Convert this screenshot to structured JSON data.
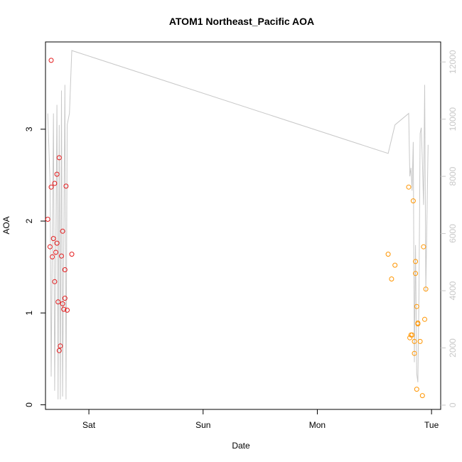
{
  "chart_data": {
    "type": "scatter",
    "title": "ATOM1 Northeast_Pacific AOA",
    "xlabel": "Date",
    "ylabel": "AOA",
    "ylabel_right": "",
    "grid": false,
    "legend": "none",
    "x_axis": {
      "type": "time",
      "range_days": [
        -0.38,
        3.08
      ],
      "ticks": [
        {
          "label": "Sat",
          "value": 0
        },
        {
          "label": "Sun",
          "value": 1
        },
        {
          "label": "Mon",
          "value": 2
        },
        {
          "label": "Tue",
          "value": 3
        }
      ]
    },
    "y_left": {
      "range": [
        -0.05,
        3.95
      ],
      "ticks": [
        {
          "label": "0",
          "value": 0
        },
        {
          "label": "1",
          "value": 1
        },
        {
          "label": "2",
          "value": 2
        },
        {
          "label": "3",
          "value": 3
        }
      ]
    },
    "y_right": {
      "range": [
        -150,
        12700
      ],
      "color": "#c8c8c8",
      "ticks": [
        {
          "label": "0",
          "value": 0
        },
        {
          "label": "2000",
          "value": 2000
        },
        {
          "label": "4000",
          "value": 4000
        },
        {
          "label": "6000",
          "value": 6000
        },
        {
          "label": "8000",
          "value": 8000
        },
        {
          "label": "10000",
          "value": 10000
        },
        {
          "label": "12000",
          "value": 12000
        }
      ]
    },
    "series": [
      {
        "color": "#e41a1c",
        "axis": "left",
        "marker": "circle-open",
        "points": [
          [
            -0.36,
            2.02
          ],
          [
            -0.34,
            1.72
          ],
          [
            -0.33,
            3.75
          ],
          [
            -0.33,
            2.37
          ],
          [
            -0.32,
            1.61
          ],
          [
            -0.31,
            1.81
          ],
          [
            -0.3,
            2.41
          ],
          [
            -0.3,
            1.34
          ],
          [
            -0.29,
            1.66
          ],
          [
            -0.28,
            1.76
          ],
          [
            -0.28,
            2.51
          ],
          [
            -0.27,
            1.12
          ],
          [
            -0.26,
            0.59
          ],
          [
            -0.26,
            2.69
          ],
          [
            -0.25,
            0.64
          ],
          [
            -0.24,
            1.62
          ],
          [
            -0.23,
            1.1
          ],
          [
            -0.23,
            1.89
          ],
          [
            -0.22,
            1.04
          ],
          [
            -0.21,
            1.47
          ],
          [
            -0.21,
            1.16
          ],
          [
            -0.2,
            2.38
          ],
          [
            -0.19,
            1.03
          ],
          [
            -0.15,
            1.64
          ]
        ]
      },
      {
        "color": "#ff9500",
        "axis": "left",
        "marker": "circle-open",
        "points": [
          [
            2.62,
            1.64
          ],
          [
            2.65,
            1.37
          ],
          [
            2.68,
            1.52
          ],
          [
            2.8,
            2.37
          ],
          [
            2.81,
            0.73
          ],
          [
            2.82,
            0.76
          ],
          [
            2.83,
            0.76
          ],
          [
            2.84,
            2.22
          ],
          [
            2.85,
            0.56
          ],
          [
            2.85,
            0.69
          ],
          [
            2.86,
            1.56
          ],
          [
            2.86,
            1.43
          ],
          [
            2.87,
            1.07
          ],
          [
            2.87,
            0.17
          ],
          [
            2.88,
            0.89
          ],
          [
            2.88,
            0.88
          ],
          [
            2.9,
            0.69
          ],
          [
            2.92,
            0.1
          ],
          [
            2.93,
            1.72
          ],
          [
            2.94,
            0.93
          ],
          [
            2.95,
            1.26
          ]
        ]
      },
      {
        "color": "#c8c8c8",
        "axis": "right",
        "marker": "line",
        "points": [
          [
            -0.36,
            10200
          ],
          [
            -0.34,
            7800
          ],
          [
            -0.33,
            1000
          ],
          [
            -0.31,
            10200
          ],
          [
            -0.3,
            500
          ],
          [
            -0.28,
            10500
          ],
          [
            -0.27,
            200
          ],
          [
            -0.26,
            9800
          ],
          [
            -0.25,
            200
          ],
          [
            -0.24,
            11000
          ],
          [
            -0.23,
            300
          ],
          [
            -0.21,
            11200
          ],
          [
            -0.2,
            200
          ],
          [
            -0.19,
            9800
          ],
          [
            -0.17,
            10200
          ],
          [
            -0.15,
            12400
          ],
          [
            2.62,
            8800
          ],
          [
            2.68,
            9800
          ],
          [
            2.8,
            10200
          ],
          [
            2.81,
            8000
          ],
          [
            2.82,
            8300
          ],
          [
            2.83,
            7500
          ],
          [
            2.84,
            9200
          ],
          [
            2.85,
            1500
          ],
          [
            2.86,
            5600
          ],
          [
            2.87,
            1100
          ],
          [
            2.88,
            800
          ],
          [
            2.89,
            4000
          ],
          [
            2.9,
            9500
          ],
          [
            2.91,
            9700
          ],
          [
            2.92,
            8500
          ],
          [
            2.93,
            7000
          ],
          [
            2.94,
            11200
          ],
          [
            2.95,
            4000
          ],
          [
            2.97,
            9100
          ]
        ]
      }
    ]
  }
}
